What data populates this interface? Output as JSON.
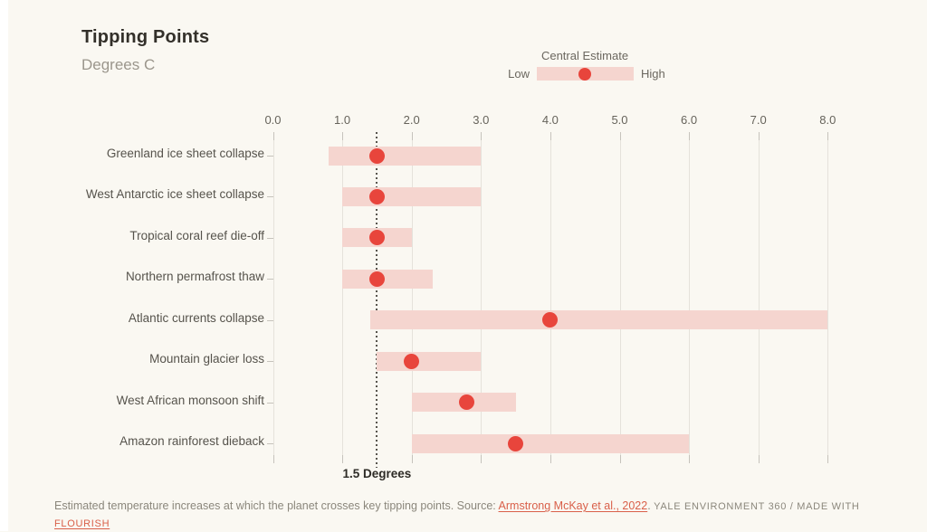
{
  "header": {
    "title": "Tipping Points",
    "subtitle": "Degrees C"
  },
  "legend": {
    "title": "Central Estimate",
    "low": "Low",
    "high": "High"
  },
  "chart_data": {
    "type": "bar",
    "orientation": "horizontal-range-dot",
    "title": "Tipping Points",
    "subtitle": "Degrees C",
    "xlabel": "Degrees C",
    "xlim": [
      0,
      8
    ],
    "xticks": [
      0,
      1,
      2,
      3,
      4,
      5,
      6,
      7,
      8
    ],
    "xtick_labels": [
      "0.0",
      "1.0",
      "2.0",
      "3.0",
      "4.0",
      "5.0",
      "6.0",
      "7.0",
      "8.0"
    ],
    "grid": true,
    "legend_position": "top-right",
    "categories": [
      "Greenland ice sheet collapse",
      "West Antarctic ice sheet collapse",
      "Tropical coral reef die-off",
      "Northern permafrost thaw",
      "Atlantic currents collapse",
      "Mountain glacier loss",
      "West African monsoon shift",
      "Amazon rainforest dieback"
    ],
    "series": [
      {
        "name": "Low",
        "values": [
          0.8,
          1.0,
          1.0,
          1.0,
          1.4,
          1.5,
          2.0,
          2.0
        ]
      },
      {
        "name": "High",
        "values": [
          3.0,
          3.0,
          2.0,
          2.3,
          8.0,
          3.0,
          3.5,
          6.0
        ]
      },
      {
        "name": "Central Estimate",
        "values": [
          1.5,
          1.5,
          1.5,
          1.5,
          4.0,
          2.0,
          2.8,
          3.5
        ]
      }
    ],
    "threshold_line": {
      "value": 1.5,
      "label": "1.5 Degrees"
    },
    "colors": {
      "background": "#FAF8F2",
      "range_bar": "#F5D5CF",
      "central_dot": "#E8453C",
      "gridline": "#E5E2DB",
      "threshold": "#58554E",
      "link": "#D9604A"
    }
  },
  "footer": {
    "text": "Estimated temperature increases at which the planet crosses key tipping points. Source: ",
    "source_link": "Armstrong McKay et al., 2022",
    "after_link": ". ",
    "attribution": "YALE ENVIRONMENT 360 / MADE WITH",
    "flourish_link": "FLOURISH"
  }
}
